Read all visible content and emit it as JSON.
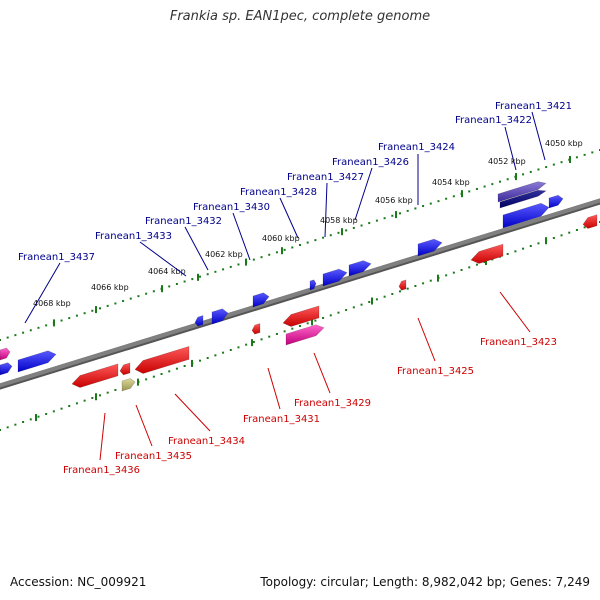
{
  "title": "Frankia sp. EAN1pec, complete genome",
  "footer": {
    "accession": "Accession: NC_009921",
    "summary": "Topology: circular; Length: 8,982,042 bp; Genes: 7,249"
  },
  "colors": {
    "forward_label": "#00008b",
    "reverse_label": "#cc0000",
    "forward_gene": "#1010e0",
    "reverse_gene": "#e01010",
    "rna_gene": "#e0109a",
    "pseudo_gene": "#b8b46a",
    "tick": "#1a7a1a",
    "backbone": "#808080"
  },
  "kbp_ticks": [
    "4050 kbp",
    "4052 kbp",
    "4054 kbp",
    "4056 kbp",
    "4058 kbp",
    "4060 kbp",
    "4062 kbp",
    "4064 kbp",
    "4066 kbp",
    "4068 kbp"
  ],
  "forward_labels": [
    "Franean1_3421",
    "Franean1_3422",
    "Franean1_3424",
    "Franean1_3426",
    "Franean1_3427",
    "Franean1_3428",
    "Franean1_3430",
    "Franean1_3432",
    "Franean1_3433",
    "Franean1_3437"
  ],
  "reverse_labels": [
    "Franean1_3423",
    "Franean1_3425",
    "Franean1_3429",
    "Franean1_3431",
    "Franean1_3434",
    "Franean1_3435",
    "Franean1_3436"
  ]
}
